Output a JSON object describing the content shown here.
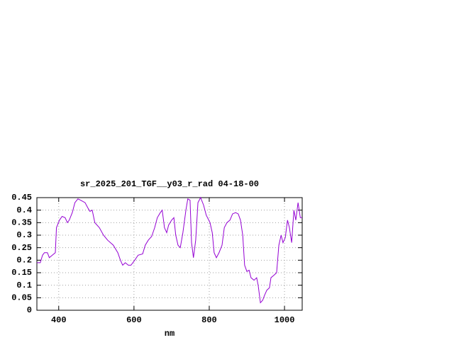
{
  "chart_data": {
    "type": "line",
    "title": "sr_2025_201_TGF__y03_r_rad 04-18-00",
    "x_label": "nm",
    "color": "#9400d3",
    "grid": true,
    "xlim": [
      342,
      1047
    ],
    "ylim": [
      0,
      0.45
    ],
    "xticks": [
      400,
      600,
      800,
      1000
    ],
    "yticks": [
      0,
      0.05,
      0.1,
      0.15,
      0.2,
      0.25,
      0.3,
      0.35,
      0.4,
      0.45
    ],
    "x": [
      342,
      351,
      357,
      362,
      370,
      375,
      383,
      391,
      394,
      402,
      409,
      417,
      423,
      428,
      436,
      443,
      451,
      458,
      470,
      477,
      483,
      489,
      496,
      508,
      519,
      530,
      545,
      557,
      564,
      570,
      577,
      585,
      592,
      602,
      611,
      623,
      630,
      638,
      647,
      655,
      662,
      670,
      675,
      681,
      687,
      692,
      700,
      706,
      711,
      717,
      723,
      730,
      738,
      743,
      749,
      753,
      758,
      764,
      770,
      777,
      785,
      792,
      802,
      808,
      813,
      819,
      826,
      834,
      840,
      847,
      855,
      862,
      870,
      877,
      883,
      889,
      894,
      900,
      906,
      911,
      919,
      926,
      930,
      936,
      942,
      947,
      953,
      960,
      964,
      972,
      979,
      985,
      991,
      996,
      1002,
      1008,
      1013,
      1019,
      1025,
      1030,
      1036,
      1042,
      1047
    ],
    "values": [
      0.19,
      0.19,
      0.22,
      0.23,
      0.23,
      0.21,
      0.22,
      0.23,
      0.33,
      0.36,
      0.375,
      0.37,
      0.35,
      0.36,
      0.39,
      0.43,
      0.445,
      0.44,
      0.43,
      0.41,
      0.395,
      0.4,
      0.35,
      0.33,
      0.3,
      0.28,
      0.26,
      0.23,
      0.2,
      0.18,
      0.19,
      0.18,
      0.18,
      0.2,
      0.22,
      0.225,
      0.26,
      0.28,
      0.295,
      0.33,
      0.37,
      0.39,
      0.4,
      0.33,
      0.31,
      0.34,
      0.36,
      0.37,
      0.3,
      0.26,
      0.25,
      0.31,
      0.4,
      0.445,
      0.44,
      0.27,
      0.21,
      0.28,
      0.43,
      0.45,
      0.42,
      0.38,
      0.35,
      0.31,
      0.23,
      0.21,
      0.23,
      0.26,
      0.33,
      0.35,
      0.36,
      0.385,
      0.39,
      0.385,
      0.36,
      0.3,
      0.18,
      0.155,
      0.16,
      0.13,
      0.12,
      0.13,
      0.1,
      0.03,
      0.04,
      0.06,
      0.08,
      0.09,
      0.13,
      0.14,
      0.15,
      0.26,
      0.3,
      0.27,
      0.29,
      0.36,
      0.33,
      0.27,
      0.4,
      0.36,
      0.43,
      0.37,
      0.37
    ]
  }
}
